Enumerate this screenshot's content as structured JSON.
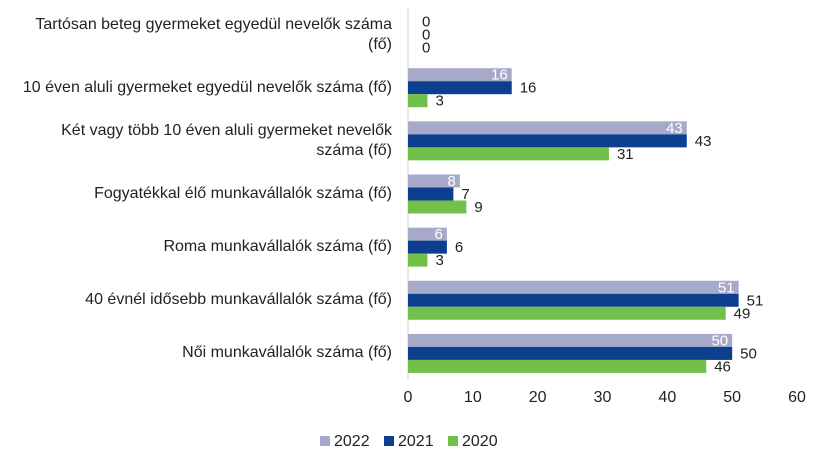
{
  "chart_data": {
    "type": "bar",
    "orientation": "horizontal",
    "categories": [
      "Tartósan beteg gyermeket egyedül nevelők száma (fő)",
      "10 éven aluli gyermeket egyedül nevelők száma (fő)",
      "Két vagy több 10 éven aluli gyermeket nevelők száma (fő)",
      "Fogyatékkal élő munkavállalók száma (fő)",
      "Roma munkavállalók száma (fő)",
      "40 évnél idősebb munkavállalók száma (fő)",
      "Női munkavállalók száma (fő)"
    ],
    "series": [
      {
        "name": "2022",
        "color": "#a6aac8",
        "values": [
          0,
          16,
          43,
          8,
          6,
          51,
          50
        ]
      },
      {
        "name": "2021",
        "color": "#0d3f8f",
        "values": [
          0,
          16,
          43,
          7,
          6,
          51,
          50
        ]
      },
      {
        "name": "2020",
        "color": "#72c04a",
        "values": [
          0,
          3,
          31,
          9,
          3,
          49,
          46
        ]
      }
    ],
    "xlim": [
      0,
      60
    ],
    "xticks": [
      0,
      10,
      20,
      30,
      40,
      50,
      60
    ],
    "grid": false,
    "legend": "bottom"
  }
}
